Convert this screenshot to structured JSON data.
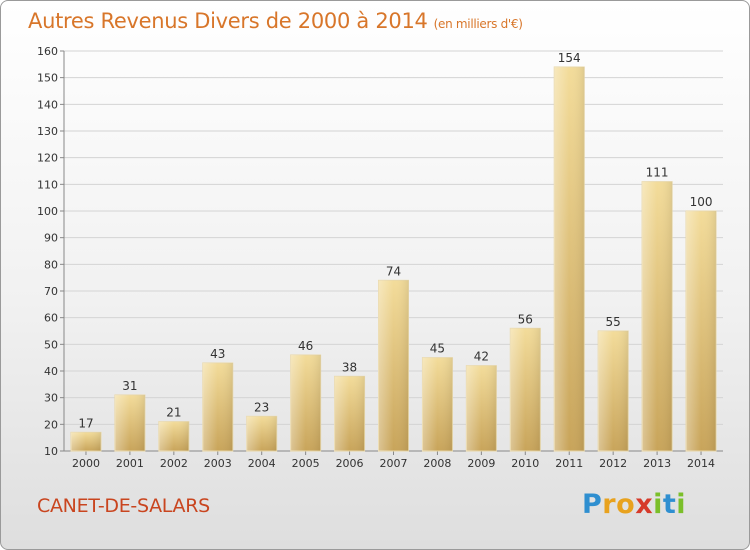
{
  "title": "Autres Revenus Divers de 2000 à 2014",
  "subtitle": "(en milliers d'€)",
  "commune": "CANET-DE-SALARS",
  "logo": {
    "letters": [
      "P",
      "r",
      "o",
      "x",
      "i",
      "t",
      "i"
    ],
    "colors": [
      "#2f8fd0",
      "#e8a21e",
      "#e8a21e",
      "#d63a2a",
      "#7bbf2a",
      "#2f8fd0",
      "#7bbf2a"
    ]
  },
  "chart_data": {
    "type": "bar",
    "categories": [
      "2000",
      "2001",
      "2002",
      "2003",
      "2004",
      "2005",
      "2006",
      "2007",
      "2008",
      "2009",
      "2010",
      "2011",
      "2012",
      "2013",
      "2014"
    ],
    "values": [
      17,
      31,
      21,
      43,
      23,
      46,
      38,
      74,
      45,
      42,
      56,
      154,
      55,
      111,
      100
    ],
    "ylim": [
      10,
      160
    ],
    "yticks": [
      10,
      20,
      30,
      40,
      50,
      60,
      70,
      80,
      90,
      100,
      110,
      120,
      130,
      140,
      150,
      160
    ],
    "grid": true,
    "bar_color": "#e4c47a"
  }
}
